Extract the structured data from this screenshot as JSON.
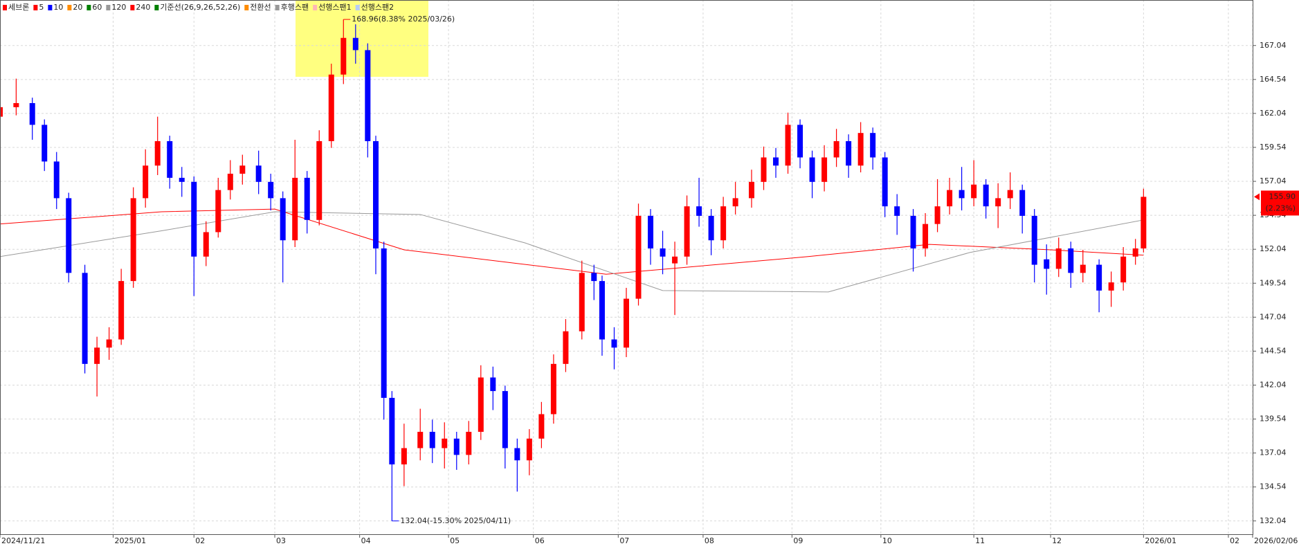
{
  "chart_data": {
    "type": "candlestick",
    "legend": [
      {
        "name": "세브론",
        "color": "#ff0000"
      },
      {
        "name": "5",
        "color": "#ff0000"
      },
      {
        "name": "10",
        "color": "#0000ff"
      },
      {
        "name": "20",
        "color": "#ff8c00"
      },
      {
        "name": "60",
        "color": "#008000"
      },
      {
        "name": "120",
        "color": "#999999"
      },
      {
        "name": "240",
        "color": "#ff0000"
      },
      {
        "name": "기준선(26,9,26,52,26)",
        "color": "#008000"
      },
      {
        "name": "전환선",
        "color": "#ff8c00"
      },
      {
        "name": "후행스팬",
        "color": "#999999"
      },
      {
        "name": "선행스팬1",
        "color": "#ffb6b6"
      },
      {
        "name": "선행스팬2",
        "color": "#b8cdf5"
      }
    ],
    "up_color": "#ff0000",
    "down_color": "#0000ff",
    "x": [
      0,
      4,
      8,
      11,
      14,
      17,
      21,
      24,
      27,
      30,
      33,
      36,
      39,
      42,
      45,
      48,
      51,
      54,
      57,
      60,
      64,
      67,
      70,
      73,
      76,
      79,
      82,
      85,
      88,
      91,
      93,
      95,
      97,
      100,
      104,
      107,
      110,
      113,
      116,
      119,
      122,
      125,
      128,
      131,
      134,
      137,
      140,
      144,
      147,
      149,
      152,
      155,
      158,
      161,
      164,
      167,
      170,
      173,
      176,
      179,
      182,
      186,
      189,
      192,
      195,
      198,
      201,
      204,
      207,
      210,
      213,
      216,
      219,
      222,
      226,
      229,
      232,
      235,
      238,
      241,
      244,
      247,
      250,
      253,
      256,
      259,
      262,
      265,
      268,
      272,
      275,
      278,
      281,
      283
    ],
    "open": [
      161.8,
      162.5,
      162.8,
      161.2,
      158.5,
      155.8,
      150.3,
      143.6,
      144.8,
      145.4,
      149.7,
      155.8,
      158.2,
      160.0,
      157.3,
      157.0,
      151.5,
      153.3,
      156.4,
      157.6,
      158.2,
      157.0,
      155.8,
      152.7,
      157.3,
      154.2,
      160.0,
      164.9,
      167.6,
      166.7,
      160.0,
      152.1,
      141.1,
      136.2,
      137.4,
      138.6,
      137.4,
      138.1,
      136.9,
      138.6,
      142.6,
      141.6,
      137.4,
      136.5,
      138.1,
      139.9,
      143.6,
      146.0,
      150.3,
      149.7,
      145.4,
      144.8,
      148.4,
      154.5,
      152.1,
      151.0,
      151.5,
      155.2,
      154.5,
      152.7,
      155.2,
      155.8,
      157.0,
      158.8,
      158.2,
      161.2,
      158.8,
      157.0,
      158.8,
      160.0,
      158.2,
      160.6,
      158.8,
      155.2,
      154.5,
      152.1,
      153.9,
      155.2,
      156.4,
      155.8,
      156.8,
      155.2,
      155.8,
      156.4,
      154.5,
      151.3,
      150.6,
      152.1,
      150.3,
      150.9,
      149.0,
      149.6,
      151.5,
      152.1
    ],
    "high": [
      163.3,
      164.6,
      163.2,
      161.6,
      159.2,
      156.2,
      150.9,
      145.6,
      146.3,
      150.6,
      156.6,
      159.4,
      161.8,
      160.4,
      158.1,
      157.4,
      154.1,
      157.3,
      158.6,
      159.0,
      159.3,
      157.6,
      156.3,
      160.1,
      157.8,
      160.8,
      165.7,
      168.96,
      168.6,
      167.2,
      160.4,
      152.6,
      141.6,
      139.2,
      140.3,
      139.5,
      139.3,
      138.6,
      139.4,
      143.5,
      143.4,
      142.0,
      138.1,
      138.8,
      140.8,
      144.3,
      146.9,
      151.2,
      150.9,
      150.1,
      146.3,
      149.2,
      155.4,
      155.0,
      153.4,
      152.6,
      156.0,
      157.3,
      155.0,
      155.9,
      157.0,
      157.9,
      159.6,
      159.5,
      162.1,
      161.6,
      159.3,
      159.7,
      160.9,
      160.5,
      161.4,
      161.0,
      159.2,
      156.1,
      155.0,
      154.7,
      157.2,
      157.3,
      158.1,
      158.6,
      157.2,
      156.9,
      157.7,
      156.8,
      155.0,
      152.4,
      152.9,
      152.6,
      152.0,
      151.3,
      150.4,
      152.2,
      152.8,
      156.5
    ],
    "low": [
      161.0,
      161.9,
      160.1,
      157.8,
      155.0,
      149.6,
      142.9,
      141.2,
      143.9,
      145.0,
      149.2,
      155.1,
      157.5,
      156.5,
      155.9,
      148.6,
      150.8,
      152.9,
      155.7,
      156.8,
      156.1,
      154.9,
      149.6,
      152.2,
      153.2,
      153.8,
      159.5,
      164.2,
      165.7,
      158.8,
      150.2,
      139.5,
      132.04,
      134.6,
      136.5,
      136.3,
      135.9,
      135.8,
      136.2,
      138.0,
      140.2,
      135.9,
      134.2,
      135.4,
      137.4,
      139.2,
      143.0,
      145.4,
      148.3,
      144.2,
      143.2,
      144.1,
      147.9,
      150.9,
      150.2,
      147.2,
      150.9,
      153.7,
      151.6,
      152.1,
      154.6,
      155.1,
      156.4,
      157.3,
      157.6,
      158.0,
      155.8,
      156.3,
      158.1,
      157.3,
      157.7,
      157.9,
      154.4,
      153.1,
      150.4,
      151.5,
      153.3,
      154.6,
      154.9,
      155.2,
      154.3,
      153.6,
      155.0,
      153.2,
      149.6,
      148.7,
      150.0,
      149.2,
      149.6,
      147.4,
      147.8,
      149.0,
      150.9,
      151.8
    ],
    "close": [
      162.5,
      162.8,
      161.2,
      158.5,
      155.8,
      150.3,
      143.6,
      144.8,
      145.4,
      149.7,
      155.8,
      158.2,
      160.0,
      157.3,
      157.0,
      151.5,
      153.3,
      156.4,
      157.6,
      158.2,
      157.0,
      155.8,
      152.7,
      157.3,
      154.2,
      160.0,
      164.9,
      167.6,
      166.7,
      160.0,
      152.1,
      141.1,
      136.2,
      137.4,
      138.6,
      137.4,
      138.1,
      136.9,
      138.6,
      142.6,
      141.6,
      137.4,
      136.5,
      138.1,
      139.9,
      143.6,
      146.0,
      150.3,
      149.7,
      145.4,
      144.8,
      148.4,
      154.5,
      152.1,
      151.5,
      151.5,
      155.2,
      154.5,
      152.7,
      155.2,
      155.8,
      157.0,
      158.8,
      158.2,
      161.2,
      158.8,
      157.0,
      158.8,
      160.0,
      158.2,
      160.6,
      158.8,
      155.2,
      154.5,
      152.1,
      153.9,
      155.2,
      156.4,
      155.8,
      156.8,
      155.2,
      155.8,
      156.4,
      154.5,
      150.9,
      150.6,
      152.1,
      150.3,
      150.9,
      149.0,
      149.6,
      151.5,
      152.1,
      155.9
    ],
    "lines": [
      {
        "color": "#ff0000",
        "x": [
          0,
          40,
          68,
          100,
          150,
          200,
          230,
          260,
          283
        ],
        "values": [
          153.9,
          154.8,
          155.0,
          152.0,
          150.2,
          151.5,
          152.4,
          152.0,
          151.6
        ]
      },
      {
        "color": "#999999",
        "x": [
          0,
          40,
          68,
          104,
          130,
          164,
          205,
          240,
          283
        ],
        "values": [
          151.5,
          153.4,
          154.8,
          154.6,
          152.5,
          149.0,
          148.9,
          151.8,
          154.2
        ]
      }
    ],
    "max_label": "168.96(8.38% 2025/03/26)",
    "min_label": "132.04(-15.30% 2025/04/11)",
    "last_price": "155.90",
    "last_change": "(2.23%)",
    "xlim": [
      0,
      310
    ],
    "xticks": [
      {
        "value": 0,
        "label": "2024/11/21"
      },
      {
        "value": 28,
        "label": "2025/01"
      },
      {
        "value": 48,
        "label": "02"
      },
      {
        "value": 68,
        "label": "03"
      },
      {
        "value": 89,
        "label": "04"
      },
      {
        "value": 111,
        "label": "05"
      },
      {
        "value": 132,
        "label": "06"
      },
      {
        "value": 153,
        "label": "07"
      },
      {
        "value": 174,
        "label": "08"
      },
      {
        "value": 196,
        "label": "09"
      },
      {
        "value": 218,
        "label": "10"
      },
      {
        "value": 241,
        "label": "11"
      },
      {
        "value": 260,
        "label": "12"
      },
      {
        "value": 283,
        "label": "2026/01"
      },
      {
        "value": 304,
        "label": "02"
      },
      {
        "value": 310,
        "label": "2026/02/06"
      }
    ],
    "ylim": [
      131.06,
      170.39
    ],
    "yticks": [
      132.04,
      134.54,
      137.04,
      139.54,
      142.04,
      144.54,
      147.04,
      149.54,
      152.04,
      154.54,
      157.04,
      159.54,
      162.04,
      164.54,
      167.04
    ],
    "grid": true
  }
}
